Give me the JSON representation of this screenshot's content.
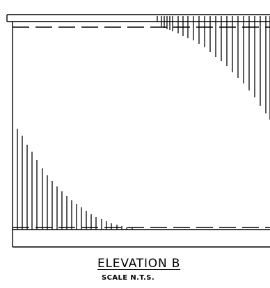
{
  "drawing": {
    "title": "ELEVATION B",
    "scale_note": "SCALE N.T.S.",
    "line_color": "#000000"
  }
}
